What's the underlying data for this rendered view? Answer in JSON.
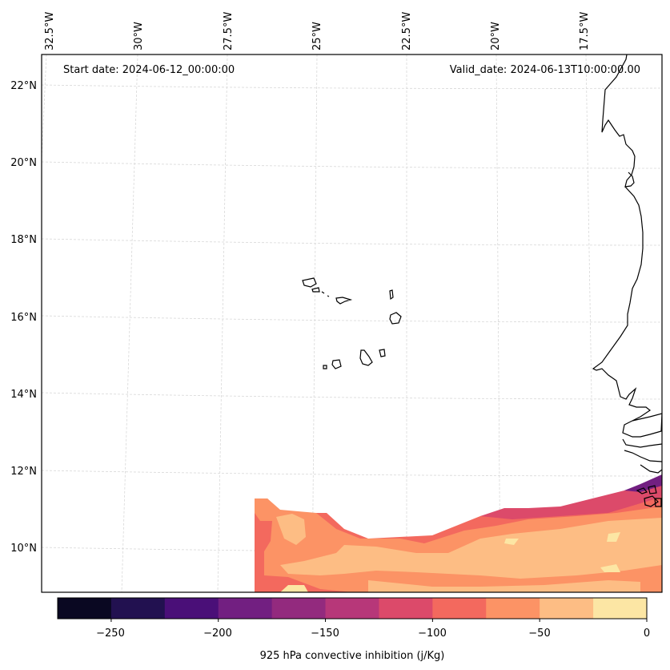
{
  "map": {
    "start_date_label": "Start date: 2024-06-12_00:00:00",
    "valid_date_label": "Valid_date: 2024-06-13T10:00:00.00",
    "lon_ticks": [
      "32.5°W",
      "30°W",
      "27.5°W",
      "25°W",
      "22.5°W",
      "20°W",
      "17.5°W"
    ],
    "lat_ticks": [
      "22°N",
      "20°N",
      "18°N",
      "16°N",
      "14°N",
      "12°N",
      "10°N"
    ],
    "variable": "925 hPa convective inhibition",
    "features": [
      "Cape Verde islands coastline",
      "West African coastline"
    ]
  },
  "colorbar": {
    "label": "925 hPa convective inhibition (j/Kg)",
    "ticks": [
      "−250",
      "−200",
      "−150",
      "−100",
      "−50",
      "0"
    ],
    "range": [
      -275,
      0
    ],
    "levels": [
      -275,
      -250,
      -225,
      -200,
      -175,
      -150,
      -125,
      -100,
      -75,
      -50,
      -25,
      0
    ],
    "colors": [
      "#0a0822",
      "#221150",
      "#4a0f78",
      "#721f81",
      "#932a7e",
      "#b73779",
      "#dc4a6a",
      "#f3695e",
      "#fc9365",
      "#fdbd84",
      "#fce6a4"
    ]
  }
}
